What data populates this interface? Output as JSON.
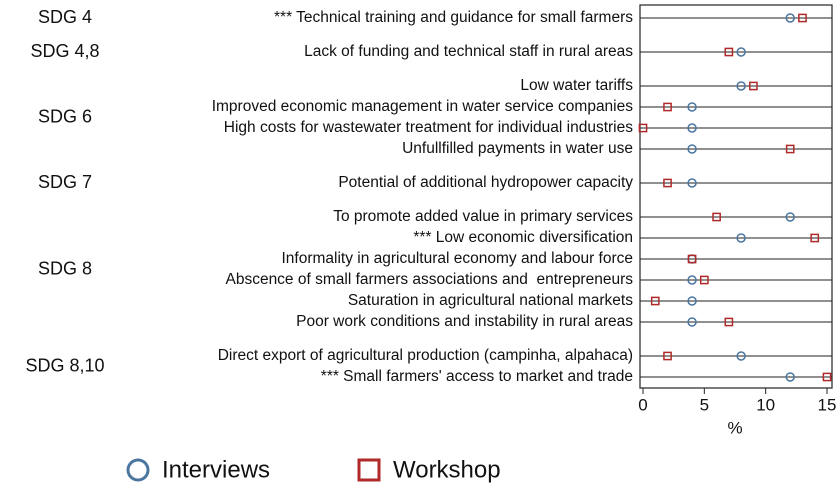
{
  "chart_data": {
    "type": "dot",
    "groups": [
      {
        "name": "SDG 4",
        "categories": [
          "*** Technical training and guidance for small farmers"
        ]
      },
      {
        "name": "SDG 4,8",
        "categories": [
          "Lack of funding and technical staff in rural areas"
        ]
      },
      {
        "name": "SDG 6",
        "categories": [
          "Low water tariffs",
          "Improved economic management in water service companies",
          "High costs for wastewater treatment for individual industries",
          "Unfullfilled payments in water use"
        ]
      },
      {
        "name": "SDG 7",
        "categories": [
          "Potential of additional hydropower capacity"
        ]
      },
      {
        "name": "SDG 8",
        "categories": [
          "To promote added value in primary services",
          "*** Low economic diversification",
          "Informality in agricultural economy and labour force",
          "Abscence of small farmers associations and  entrepreneurs",
          "Saturation in agricultural national markets",
          "Poor work conditions and instability in rural areas"
        ]
      },
      {
        "name": "SDG 8,10",
        "categories": [
          "Direct export of agricultural production (campinha, alpahaca)",
          "*** Small farmers' access to market and trade"
        ]
      }
    ],
    "series": [
      {
        "name": "Interviews",
        "color": "#4a76a0",
        "marker": "circle",
        "values": [
          12,
          8,
          8,
          4,
          4,
          4,
          4,
          12,
          8,
          4,
          4,
          4,
          4,
          8,
          12
        ]
      },
      {
        "name": "Workshop",
        "color": "#b02a2a",
        "marker": "square",
        "values": [
          13,
          7,
          9,
          2,
          0,
          12,
          2,
          6,
          14,
          4,
          5,
          1,
          7,
          2,
          15
        ]
      }
    ],
    "xlabel": "%",
    "xlim": [
      0,
      15
    ],
    "xticks": [
      0,
      5,
      10,
      15
    ]
  }
}
